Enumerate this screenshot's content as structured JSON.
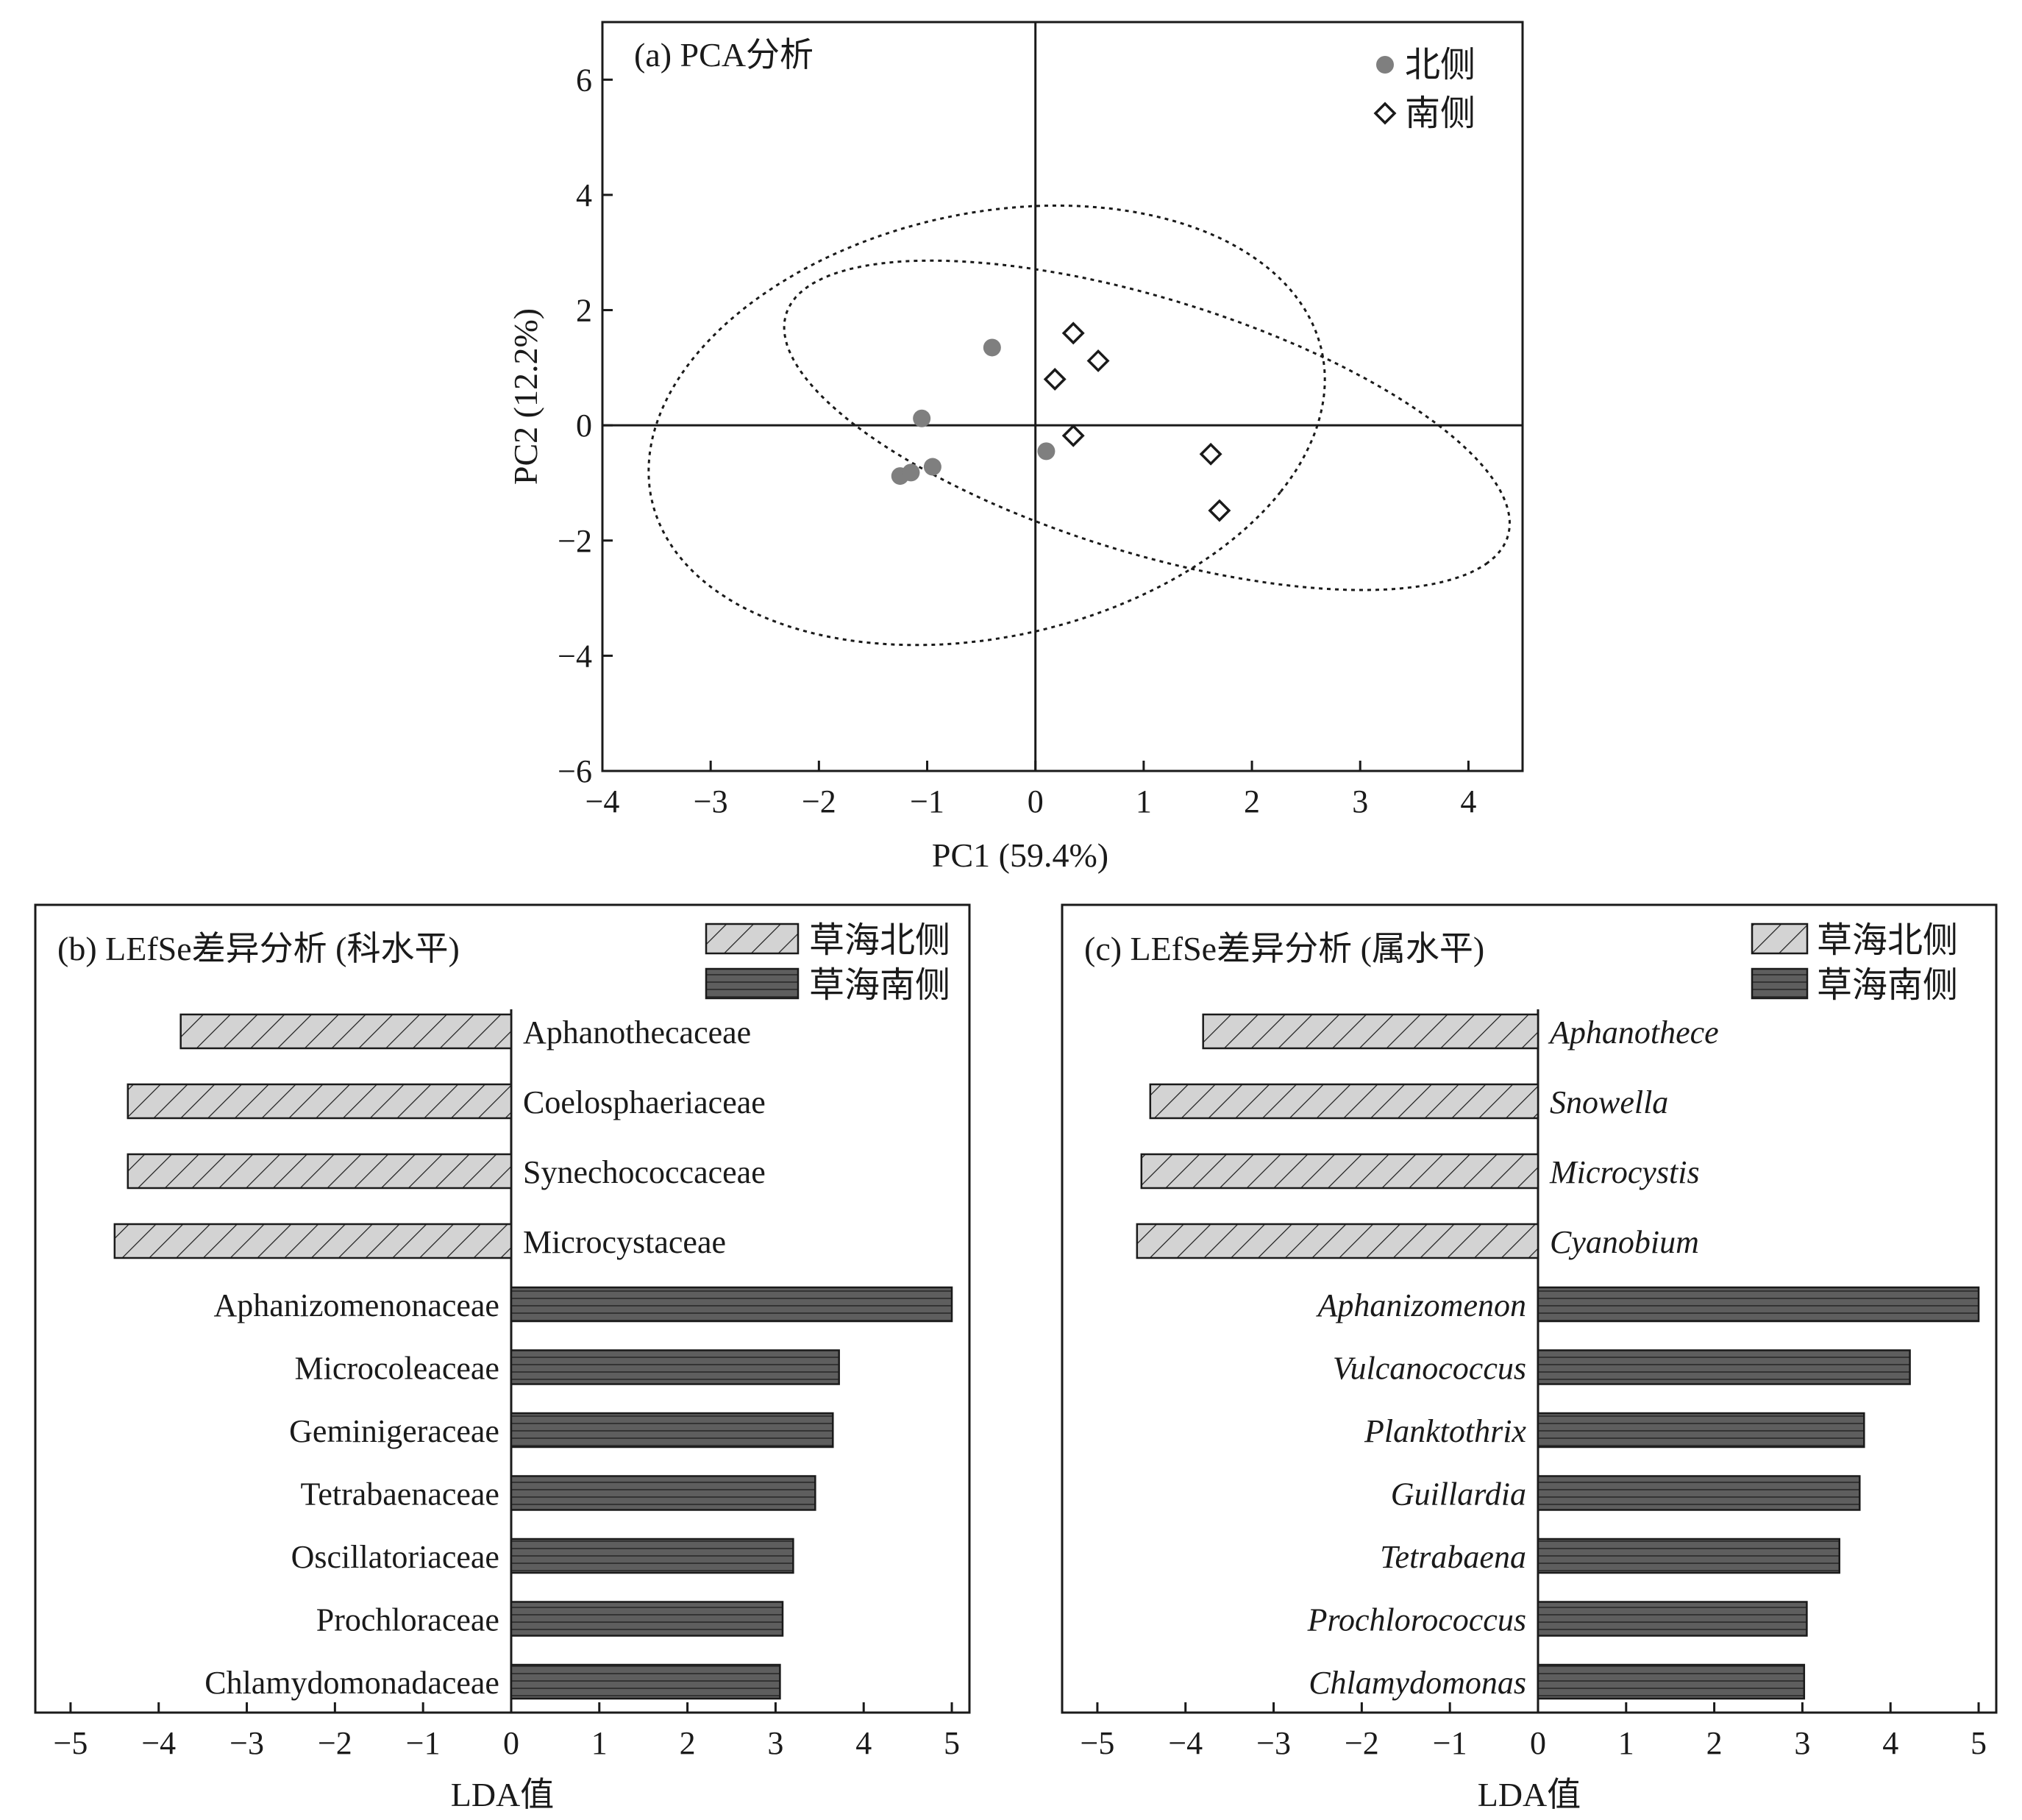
{
  "colors": {
    "north_point": "#7f7f7f",
    "north_bar": "#d3d3d3",
    "south_bar": "#5e5e5e",
    "axis": "#1a1a1a"
  },
  "chart_data": [
    {
      "id": "a",
      "type": "scatter",
      "title": "(a) PCA分析",
      "xlabel": "PC1 (59.4%)",
      "ylabel": "PC2 (12.2%)",
      "xlim": [
        -4,
        4.5
      ],
      "ylim": [
        -6,
        7
      ],
      "xticks": [
        -4,
        -3,
        -2,
        -1,
        0,
        1,
        2,
        3,
        4
      ],
      "xtick_labels": [
        "−4",
        "−3",
        "−2",
        "−1",
        "0",
        "1",
        "2",
        "3",
        "4"
      ],
      "yticks": [
        -6,
        -4,
        -2,
        0,
        2,
        4,
        6
      ],
      "ytick_labels": [
        "−6",
        "−4",
        "−2",
        "0",
        "2",
        "4",
        "6"
      ],
      "legend_position": "top-right",
      "series": [
        {
          "name": "北侧",
          "marker": "filled-circle",
          "points": [
            [
              -0.4,
              1.35
            ],
            [
              -1.05,
              0.12
            ],
            [
              -1.25,
              -0.88
            ],
            [
              -1.15,
              -0.82
            ],
            [
              -0.95,
              -0.72
            ],
            [
              0.1,
              -0.45
            ]
          ],
          "ellipse": {
            "cx": -0.45,
            "cy": 0.0,
            "rx_axis": 2.95,
            "ry_axis": 3.95,
            "angle_deg": -23.0
          }
        },
        {
          "name": "南侧",
          "marker": "open-diamond",
          "points": [
            [
              0.35,
              1.6
            ],
            [
              0.58,
              1.12
            ],
            [
              0.18,
              0.8
            ],
            [
              0.35,
              -0.18
            ],
            [
              1.62,
              -0.5
            ],
            [
              1.7,
              -1.48
            ]
          ],
          "ellipse": {
            "cx": 1.03,
            "cy": 0.0,
            "rx_axis": 3.95,
            "ry_axis": 1.95,
            "angle_deg": -37.5
          }
        }
      ]
    },
    {
      "id": "b",
      "type": "bar",
      "orientation": "horizontal",
      "title": "(b) LEfSe差异分析 (科水平)",
      "xlabel": "LDA值",
      "xlim": [
        -5.4,
        5.2
      ],
      "xticks": [
        -5,
        -4,
        -3,
        -2,
        -1,
        0,
        1,
        2,
        3,
        4,
        5
      ],
      "xtick_labels": [
        "−5",
        "−4",
        "−3",
        "−2",
        "−1",
        "0",
        "1",
        "2",
        "3",
        "4",
        "5"
      ],
      "legend_position": "top-right",
      "legend": [
        {
          "name": "草海北侧",
          "pattern": "hatched",
          "group": "north"
        },
        {
          "name": "草海南侧",
          "pattern": "striped",
          "group": "south"
        }
      ],
      "italic_labels": false,
      "bars": [
        {
          "label": "Aphanothecaceae",
          "value": -3.75,
          "group": "north"
        },
        {
          "label": "Coelosphaeriaceae",
          "value": -4.35,
          "group": "north"
        },
        {
          "label": "Synechococcaceae",
          "value": -4.35,
          "group": "north"
        },
        {
          "label": "Microcystaceae",
          "value": -4.5,
          "group": "north"
        },
        {
          "label": "Aphanizomenonaceae",
          "value": 5.0,
          "group": "south"
        },
        {
          "label": "Microcoleaceae",
          "value": 3.72,
          "group": "south"
        },
        {
          "label": "Geminigeraceae",
          "value": 3.65,
          "group": "south"
        },
        {
          "label": "Tetrabaenaceae",
          "value": 3.45,
          "group": "south"
        },
        {
          "label": "Oscillatoriaceae",
          "value": 3.2,
          "group": "south"
        },
        {
          "label": "Prochloraceae",
          "value": 3.08,
          "group": "south"
        },
        {
          "label": "Chlamydomonadaceae",
          "value": 3.05,
          "group": "south"
        }
      ]
    },
    {
      "id": "c",
      "type": "bar",
      "orientation": "horizontal",
      "title": "(c) LEfSe差异分析 (属水平)",
      "xlabel": "LDA值",
      "xlim": [
        -5.4,
        5.2
      ],
      "xticks": [
        -5,
        -4,
        -3,
        -2,
        -1,
        0,
        1,
        2,
        3,
        4,
        5
      ],
      "xtick_labels": [
        "−5",
        "−4",
        "−3",
        "−2",
        "−1",
        "0",
        "1",
        "2",
        "3",
        "4",
        "5"
      ],
      "legend_position": "top-right",
      "legend": [
        {
          "name": "草海北侧",
          "pattern": "hatched",
          "group": "north"
        },
        {
          "name": "草海南侧",
          "pattern": "striped",
          "group": "south"
        }
      ],
      "italic_labels": true,
      "bars": [
        {
          "label": "Aphanothece",
          "value": -3.8,
          "group": "north"
        },
        {
          "label": "Snowella",
          "value": -4.4,
          "group": "north"
        },
        {
          "label": "Microcystis",
          "value": -4.5,
          "group": "north"
        },
        {
          "label": "Cyanobium",
          "value": -4.55,
          "group": "north"
        },
        {
          "label": "Aphanizomenon",
          "value": 5.0,
          "group": "south"
        },
        {
          "label": "Vulcanococcus",
          "value": 4.22,
          "group": "south"
        },
        {
          "label": "Planktothrix",
          "value": 3.7,
          "group": "south"
        },
        {
          "label": "Guillardia",
          "value": 3.65,
          "group": "south"
        },
        {
          "label": "Tetrabaena",
          "value": 3.42,
          "group": "south"
        },
        {
          "label": "Prochlorococcus",
          "value": 3.05,
          "group": "south"
        },
        {
          "label": "Chlamydomonas",
          "value": 3.02,
          "group": "south"
        }
      ]
    }
  ]
}
